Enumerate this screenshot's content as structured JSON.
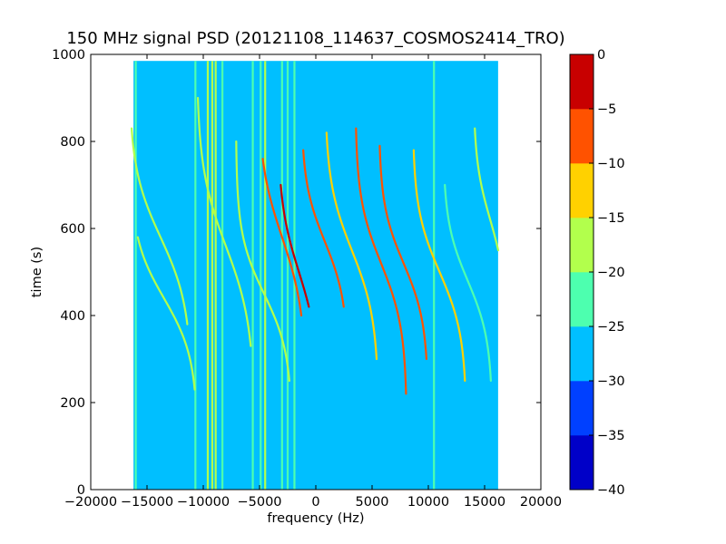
{
  "chart_data": {
    "type": "heatmap",
    "title": "150 MHz signal PSD (20121108_114637_COSMOS2414_TRO)",
    "xlabel": "frequency (Hz)",
    "ylabel": "time (s)",
    "xlim": [
      -20000,
      20000
    ],
    "ylim": [
      0,
      1000
    ],
    "x_ticks": [
      "−20000",
      "−15000",
      "−10000",
      "−5000",
      "0",
      "5000",
      "10000",
      "15000",
      "20000"
    ],
    "y_ticks": [
      "0",
      "200",
      "400",
      "600",
      "800",
      "1000"
    ],
    "data_extent": {
      "x": [
        -16200,
        16200
      ],
      "y": [
        0,
        985
      ]
    },
    "background_level": -27.5,
    "colorbar": {
      "levels": [
        -40,
        -35,
        -30,
        -25,
        -20,
        -15,
        -10,
        -5,
        0
      ],
      "tick_labels": [
        "−40",
        "−35",
        "−30",
        "−25",
        "−20",
        "−15",
        "−10",
        "−5",
        "0"
      ],
      "colors": [
        "#0000c8",
        "#0040ff",
        "#00bfff",
        "#4dffaf",
        "#b2ff4c",
        "#ffd100",
        "#ff5200",
        "#c80000"
      ]
    },
    "vertical_lines": [
      {
        "x": -16000,
        "level": -22.5
      },
      {
        "x": -10700,
        "level": -22.5
      },
      {
        "x": -9600,
        "level": -17.5
      },
      {
        "x": -9200,
        "level": -17.5
      },
      {
        "x": -8900,
        "level": -17.5
      },
      {
        "x": -8300,
        "level": -22.5
      },
      {
        "x": -5600,
        "level": -22.5
      },
      {
        "x": -4900,
        "level": -22.5
      },
      {
        "x": -4500,
        "level": -17.5
      },
      {
        "x": -3000,
        "level": -22.5
      },
      {
        "x": -2500,
        "level": -22.5
      },
      {
        "x": -1900,
        "level": -22.5
      },
      {
        "x": 10500,
        "level": -22.5
      }
    ],
    "tracks": [
      {
        "center_x": -13500,
        "center_t": 440,
        "span_x": 3000,
        "tilt": 300,
        "t_range": [
          230,
          580
        ],
        "level": -17.5
      },
      {
        "center_x": -13800,
        "center_t": 580,
        "span_x": 2800,
        "tilt": 350,
        "t_range": [
          380,
          830
        ],
        "level": -17.5
      },
      {
        "center_x": -8000,
        "center_t": 560,
        "span_x": 2600,
        "tilt": 400,
        "t_range": [
          330,
          900
        ],
        "level": -17.5
      },
      {
        "center_x": -4600,
        "center_t": 450,
        "span_x": 2500,
        "tilt": 300,
        "t_range": [
          250,
          800
        ],
        "level": -17.5
      },
      {
        "center_x": -3000,
        "center_t": 580,
        "span_x": 2200,
        "tilt": 380,
        "t_range": [
          400,
          760
        ],
        "level": -7.5
      },
      {
        "center_x": -1500,
        "center_t": 500,
        "span_x": 1900,
        "tilt": 350,
        "t_range": [
          420,
          700
        ],
        "level": -2.5
      },
      {
        "center_x": 800,
        "center_t": 570,
        "span_x": 2100,
        "tilt": 300,
        "t_range": [
          420,
          780
        ],
        "level": -7.5
      },
      {
        "center_x": 3200,
        "center_t": 550,
        "span_x": 2400,
        "tilt": 350,
        "t_range": [
          300,
          820
        ],
        "level": -12.5
      },
      {
        "center_x": 5800,
        "center_t": 520,
        "span_x": 2300,
        "tilt": 330,
        "t_range": [
          220,
          830
        ],
        "level": -7.5
      },
      {
        "center_x": 7800,
        "center_t": 520,
        "span_x": 2200,
        "tilt": 300,
        "t_range": [
          300,
          790
        ],
        "level": -7.5
      },
      {
        "center_x": 11000,
        "center_t": 500,
        "span_x": 2400,
        "tilt": 320,
        "t_range": [
          250,
          780
        ],
        "level": -12.5
      },
      {
        "center_x": 13500,
        "center_t": 480,
        "span_x": 2200,
        "tilt": 300,
        "t_range": [
          250,
          700
        ],
        "level": -22.5
      },
      {
        "center_x": 15500,
        "center_t": 620,
        "span_x": 1500,
        "tilt": 300,
        "t_range": [
          550,
          830
        ],
        "level": -17.5
      }
    ]
  }
}
